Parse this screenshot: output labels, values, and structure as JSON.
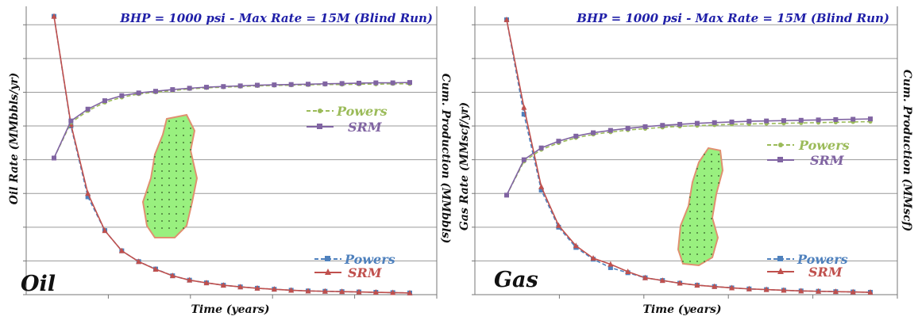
{
  "colors": {
    "powers_rate": "#4f81bd",
    "srm_rate": "#c0504d",
    "powers_cum": "#9bbb59",
    "srm_cum": "#8064a2",
    "title": "#1f1fa8",
    "grid": "#9a9a9a"
  },
  "panels": {
    "left": {
      "title": "BHP = 1000 psi - Max Rate = 15M (Blind Run)",
      "panel_name": "Oil",
      "xlabel": "Time (years)",
      "ylabel_left": "Oil Rate (MMbbls/yr)",
      "ylabel_right": "Cum. Production (MMbbls)",
      "legend_cum": [
        "Powers",
        "SRM"
      ],
      "legend_rate": [
        "Powers",
        "SRM"
      ]
    },
    "right": {
      "title": "BHP = 1000 psi - Max Rate = 15M (Blind Run)",
      "panel_name": "Gas",
      "xlabel": "Time (years)",
      "ylabel_left": "Gas Rate (MMscf/yr)",
      "ylabel_right": "Cum. Production (MMscf)",
      "legend_cum": [
        "Powers",
        "SRM"
      ],
      "legend_rate": [
        "Powers",
        "SRM"
      ]
    }
  },
  "chart_data": [
    {
      "type": "line",
      "title": "BHP = 1000 psi - Max Rate = 15M (Blind Run)",
      "xlabel": "Time (years)",
      "ylabel": "Oil Rate (MMbbls/yr)",
      "y2label": "Cum. Production (MMbbls)",
      "annotation": "Oil",
      "x": [
        0,
        1,
        2,
        3,
        4,
        5,
        6,
        7,
        8,
        9,
        10,
        11,
        12,
        13,
        14,
        15,
        16,
        17,
        18,
        19,
        20,
        21
      ],
      "ylim": [
        0,
        8.5
      ],
      "y2lim": [
        0,
        8.5
      ],
      "grid": "horizontal",
      "series": [
        {
          "name": "Powers",
          "axis": "rate",
          "marker": "square",
          "style": "dashed",
          "color": "#4f81bd",
          "values": [
            8.25,
            5.0,
            2.9,
            1.9,
            1.3,
            0.98,
            0.76,
            0.56,
            0.43,
            0.35,
            0.28,
            0.23,
            0.19,
            0.16,
            0.13,
            0.11,
            0.1,
            0.09,
            0.08,
            0.07,
            0.06,
            0.05
          ]
        },
        {
          "name": "SRM",
          "axis": "rate",
          "marker": "triangle",
          "style": "solid",
          "color": "#c0504d",
          "values": [
            8.25,
            5.05,
            3.0,
            1.9,
            1.3,
            0.98,
            0.75,
            0.56,
            0.43,
            0.35,
            0.28,
            0.23,
            0.19,
            0.16,
            0.13,
            0.11,
            0.1,
            0.09,
            0.08,
            0.07,
            0.06,
            0.05
          ]
        },
        {
          "name": "Powers",
          "axis": "cum",
          "marker": "circle",
          "style": "dashed",
          "color": "#9bbb59",
          "values": [
            4.05,
            5.1,
            5.45,
            5.7,
            5.85,
            5.95,
            6.0,
            6.05,
            6.1,
            6.13,
            6.15,
            6.17,
            6.19,
            6.2,
            6.21,
            6.22,
            6.23,
            6.23,
            6.24,
            6.24,
            6.25,
            6.25
          ]
        },
        {
          "name": "SRM",
          "axis": "cum",
          "marker": "square",
          "style": "solid",
          "color": "#8064a2",
          "values": [
            4.05,
            5.15,
            5.5,
            5.75,
            5.9,
            5.98,
            6.03,
            6.08,
            6.12,
            6.15,
            6.17,
            6.19,
            6.21,
            6.22,
            6.23,
            6.24,
            6.25,
            6.26,
            6.27,
            6.28,
            6.28,
            6.29
          ]
        }
      ],
      "legend": [
        "Powers",
        "SRM"
      ],
      "legend_position": "right"
    },
    {
      "type": "line",
      "title": "BHP = 1000 psi - Max Rate = 15M (Blind Run)",
      "xlabel": "Time (years)",
      "ylabel": "Gas Rate (MMscf/yr)",
      "y2label": "Cum. Production (MMscf)",
      "annotation": "Gas",
      "x": [
        0,
        1,
        2,
        3,
        4,
        5,
        6,
        7,
        8,
        9,
        10,
        11,
        12,
        13,
        14,
        15,
        16,
        17,
        18,
        19,
        20,
        21
      ],
      "ylim": [
        0,
        8.5
      ],
      "y2lim": [
        0,
        8.5
      ],
      "grid": "horizontal",
      "series": [
        {
          "name": "Powers",
          "axis": "rate",
          "marker": "square",
          "style": "dashed",
          "color": "#4f81bd",
          "values": [
            8.15,
            5.35,
            3.1,
            2.0,
            1.4,
            1.05,
            0.8,
            0.65,
            0.5,
            0.42,
            0.34,
            0.28,
            0.24,
            0.2,
            0.17,
            0.15,
            0.13,
            0.11,
            0.1,
            0.09,
            0.08,
            0.07
          ]
        },
        {
          "name": "SRM",
          "axis": "rate",
          "marker": "triangle",
          "style": "solid",
          "color": "#c0504d",
          "values": [
            8.15,
            5.55,
            3.2,
            2.05,
            1.45,
            1.08,
            0.9,
            0.68,
            0.5,
            0.42,
            0.34,
            0.28,
            0.24,
            0.2,
            0.17,
            0.15,
            0.13,
            0.11,
            0.1,
            0.09,
            0.08,
            0.07
          ]
        },
        {
          "name": "Powers",
          "axis": "cum",
          "marker": "circle",
          "style": "dashed",
          "color": "#9bbb59",
          "values": [
            2.95,
            3.95,
            4.3,
            4.5,
            4.65,
            4.75,
            4.82,
            4.88,
            4.92,
            4.96,
            4.99,
            5.01,
            5.03,
            5.05,
            5.06,
            5.07,
            5.08,
            5.09,
            5.1,
            5.11,
            5.12,
            5.13
          ]
        },
        {
          "name": "SRM",
          "axis": "cum",
          "marker": "square",
          "style": "solid",
          "color": "#8064a2",
          "values": [
            2.95,
            4.0,
            4.35,
            4.55,
            4.7,
            4.8,
            4.87,
            4.93,
            4.98,
            5.02,
            5.05,
            5.08,
            5.1,
            5.12,
            5.14,
            5.15,
            5.16,
            5.17,
            5.18,
            5.19,
            5.2,
            5.21
          ]
        }
      ],
      "legend": [
        "Powers",
        "SRM"
      ],
      "legend_position": "right"
    }
  ]
}
